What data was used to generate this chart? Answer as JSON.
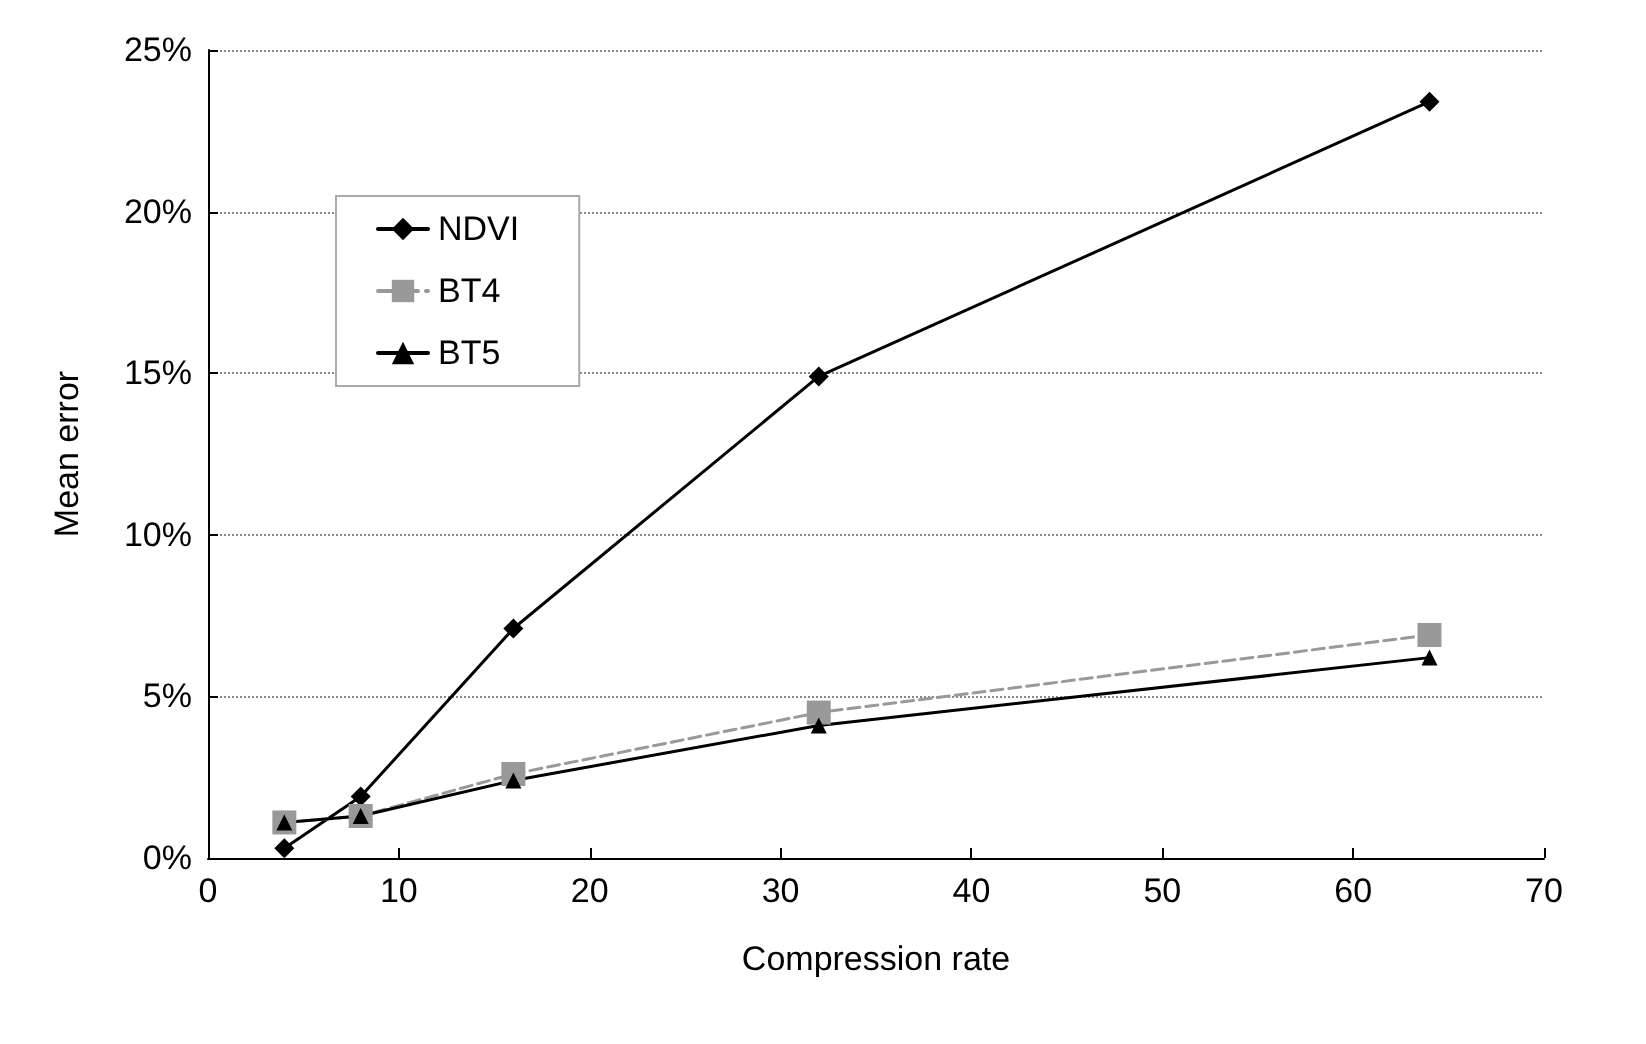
{
  "chart_data": {
    "type": "line",
    "xlabel": "Compression rate",
    "ylabel": "Mean error",
    "x": [
      4,
      8,
      16,
      32,
      64
    ],
    "series": [
      {
        "name": "NDVI",
        "color": "#000000",
        "marker": "diamond",
        "line_style": "solid",
        "values": [
          0.3,
          1.9,
          7.1,
          14.9,
          23.4
        ]
      },
      {
        "name": "BT4",
        "color": "#999999",
        "marker": "square",
        "line_style": "dashed",
        "values": [
          1.1,
          1.3,
          2.6,
          4.5,
          6.9
        ]
      },
      {
        "name": "BT5",
        "color": "#000000",
        "marker": "triangle",
        "line_style": "solid",
        "values": [
          1.1,
          1.3,
          2.4,
          4.1,
          6.2
        ]
      }
    ],
    "xlim": [
      0,
      70
    ],
    "xticks": [
      0,
      10,
      20,
      30,
      40,
      50,
      60,
      70
    ],
    "ylim": [
      0,
      25
    ],
    "yticks": [
      {
        "value": 0,
        "label": "0%"
      },
      {
        "value": 5,
        "label": "5%"
      },
      {
        "value": 10,
        "label": "10%"
      },
      {
        "value": 15,
        "label": "15%"
      },
      {
        "value": 20,
        "label": "20%"
      },
      {
        "value": 25,
        "label": "25%"
      }
    ],
    "grid": "y",
    "legend": "top left"
  }
}
